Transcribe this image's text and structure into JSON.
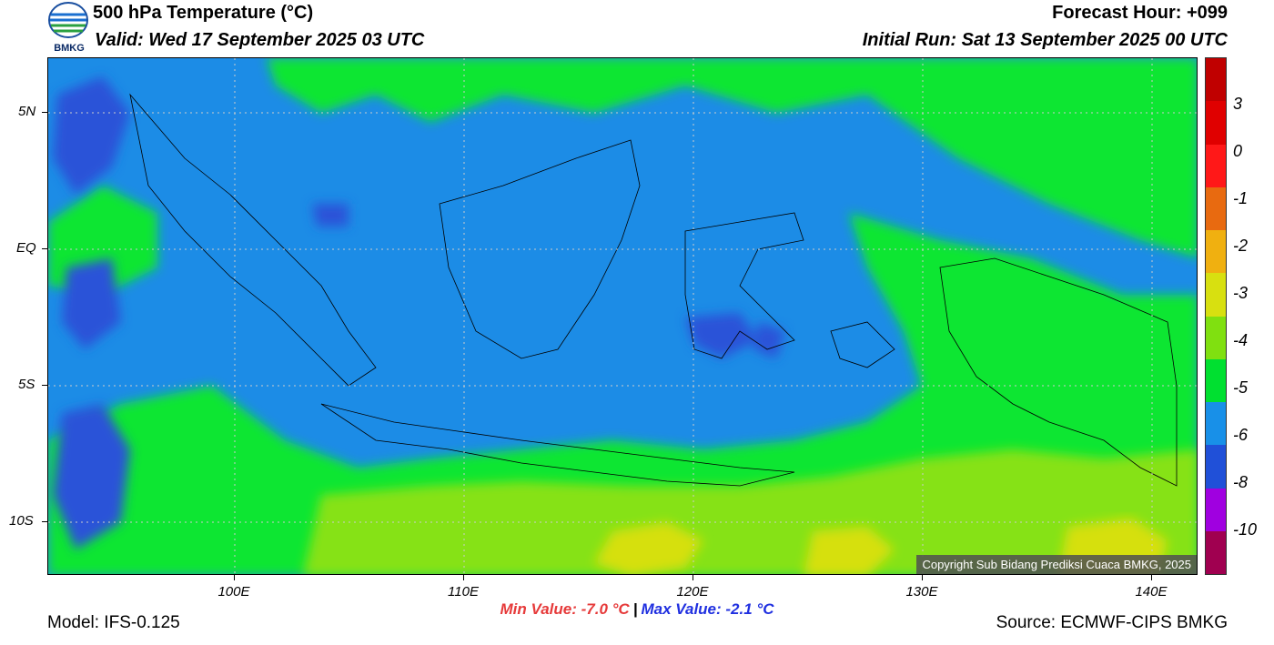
{
  "header": {
    "logo_text": "BMKG",
    "title": "500 hPa Temperature (°C)",
    "valid": "Valid: Wed 17 September 2025 03 UTC",
    "forecast_hour": "Forecast Hour: +099",
    "initial_run": "Initial Run: Sat 13 September 2025 00 UTC"
  },
  "map": {
    "lat_labels": [
      "5N",
      "EQ",
      "5S",
      "10S"
    ],
    "lon_labels": [
      "100E",
      "110E",
      "120E",
      "130E",
      "140E"
    ],
    "grid": true,
    "copyright": "Copyright Sub Bidang Prediksi Cuaca BMKG, 2025"
  },
  "legend": {
    "labels": [
      "3",
      "0",
      "-1",
      "-2",
      "-3",
      "-4",
      "-5",
      "-6",
      "-8",
      "-10"
    ],
    "colors": [
      "#c00000",
      "#e00000",
      "#ff1818",
      "#e86a10",
      "#f0b010",
      "#d8e010",
      "#80e010",
      "#00e030",
      "#1890e8",
      "#2050d8",
      "#a000e0",
      "#a00050"
    ]
  },
  "stats": {
    "min": "Min Value: -7.0 °C",
    "separator": "|",
    "max": "Max Value: -2.1 °C"
  },
  "footer": {
    "model": "Model: IFS-0.125",
    "source": "Source: ECMWF-CIPS BMKG"
  }
}
